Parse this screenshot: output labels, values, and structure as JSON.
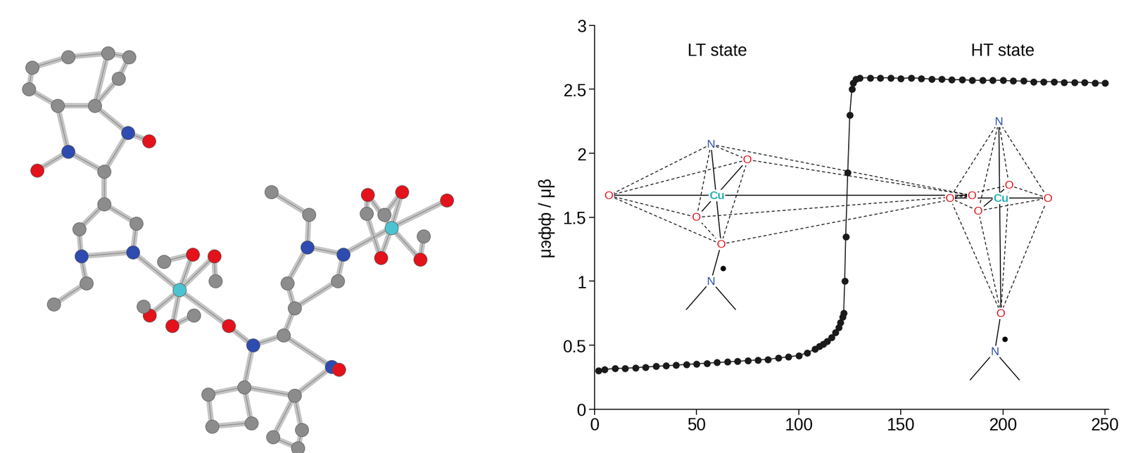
{
  "chart_data": {
    "type": "line",
    "ylabel": "μэфф / μβ",
    "x": [
      2,
      5,
      10,
      15,
      20,
      25,
      30,
      35,
      40,
      45,
      50,
      55,
      60,
      65,
      70,
      75,
      80,
      85,
      90,
      95,
      100,
      104,
      108,
      110,
      112,
      114,
      116,
      118,
      119.5,
      120.5,
      121.5,
      122,
      122.5,
      123,
      124,
      125,
      126,
      126.5,
      128,
      130,
      135,
      140,
      145,
      150,
      155,
      160,
      165,
      170,
      175,
      180,
      185,
      190,
      195,
      200,
      205,
      210,
      215,
      220,
      225,
      230,
      235,
      240,
      245,
      250
    ],
    "values": [
      0.3,
      0.31,
      0.32,
      0.32,
      0.325,
      0.33,
      0.335,
      0.34,
      0.345,
      0.35,
      0.355,
      0.36,
      0.365,
      0.37,
      0.375,
      0.38,
      0.385,
      0.39,
      0.4,
      0.41,
      0.42,
      0.44,
      0.47,
      0.49,
      0.51,
      0.53,
      0.56,
      0.6,
      0.64,
      0.68,
      0.72,
      0.75,
      1.0,
      1.35,
      1.85,
      2.3,
      2.5,
      2.55,
      2.58,
      2.59,
      2.59,
      2.59,
      2.59,
      2.585,
      2.59,
      2.585,
      2.58,
      2.58,
      2.575,
      2.575,
      2.57,
      2.57,
      2.57,
      2.57,
      2.565,
      2.565,
      2.56,
      2.56,
      2.56,
      2.555,
      2.555,
      2.555,
      2.55,
      2.55
    ],
    "color": "#1a1a1a",
    "marker": "o",
    "line_style": "solid",
    "xlim": [
      0,
      252
    ],
    "ylim": [
      0,
      3
    ],
    "xticks": [
      0,
      50,
      100,
      150,
      200,
      250
    ],
    "yticks": [
      0,
      {
        "value": 0.5,
        "label": "0.5"
      },
      1,
      {
        "value": 1.5,
        "label": "1.5"
      },
      2,
      {
        "value": 2.5,
        "label": "2.5"
      },
      3
    ],
    "grid": false,
    "insets": [
      {
        "state": "LT state",
        "atoms": [
          "N",
          "O",
          "O",
          "O",
          "O",
          "O",
          "Cu",
          "N"
        ]
      },
      {
        "state": "HT state",
        "atoms": [
          "N",
          "O",
          "O",
          "O",
          "O",
          "O",
          "Cu",
          "N"
        ]
      }
    ]
  }
}
